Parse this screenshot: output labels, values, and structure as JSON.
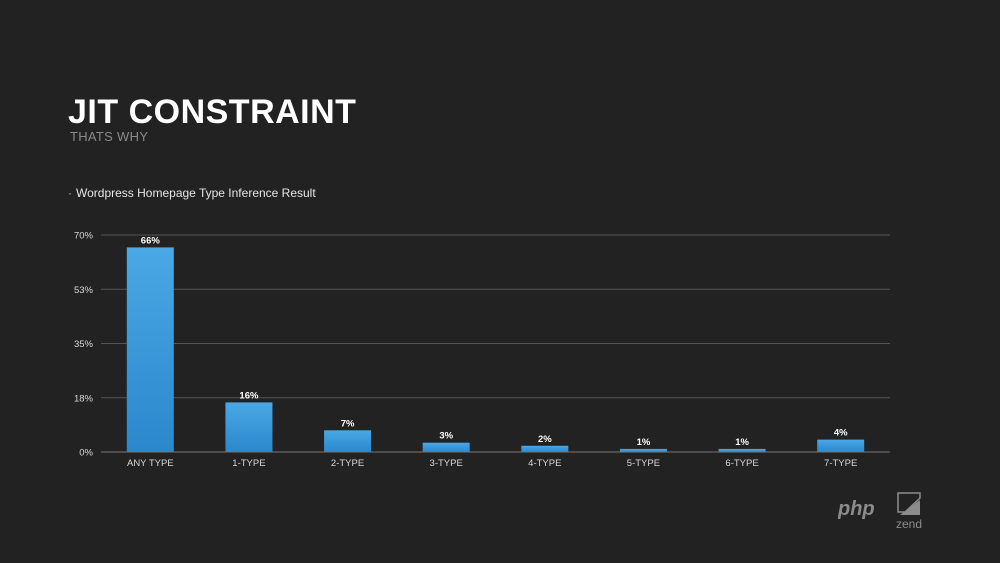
{
  "slide": {
    "title": "JIT CONSTRAINT",
    "subtitle": "THATS WHY",
    "bullet": "Wordpress Homepage Type Inference Result"
  },
  "logo": {
    "php_text": "php",
    "zend_text": "zend"
  },
  "colors": {
    "background": "#222223",
    "bar_top": "#4aa8e6",
    "bar_bottom": "#2a88cc",
    "grid": "#555555"
  },
  "chart_data": {
    "type": "bar",
    "title": "Wordpress Homepage Type Inference Result",
    "xlabel": "",
    "ylabel": "",
    "categories": [
      "ANY TYPE",
      "1-TYPE",
      "2-TYPE",
      "3-TYPE",
      "4-TYPE",
      "5-TYPE",
      "6-TYPE",
      "7-TYPE"
    ],
    "values": [
      66,
      16,
      7,
      3,
      2,
      1,
      1,
      4
    ],
    "data_labels": [
      "66%",
      "16%",
      "7%",
      "3%",
      "2%",
      "1%",
      "1%",
      "4%"
    ],
    "ylim": [
      0,
      70
    ],
    "yticks": [
      0,
      17.5,
      35,
      52.5,
      70
    ],
    "ytick_labels": [
      "0%",
      "18%",
      "35%",
      "53%",
      "70%"
    ],
    "grid": true,
    "legend": "none"
  }
}
